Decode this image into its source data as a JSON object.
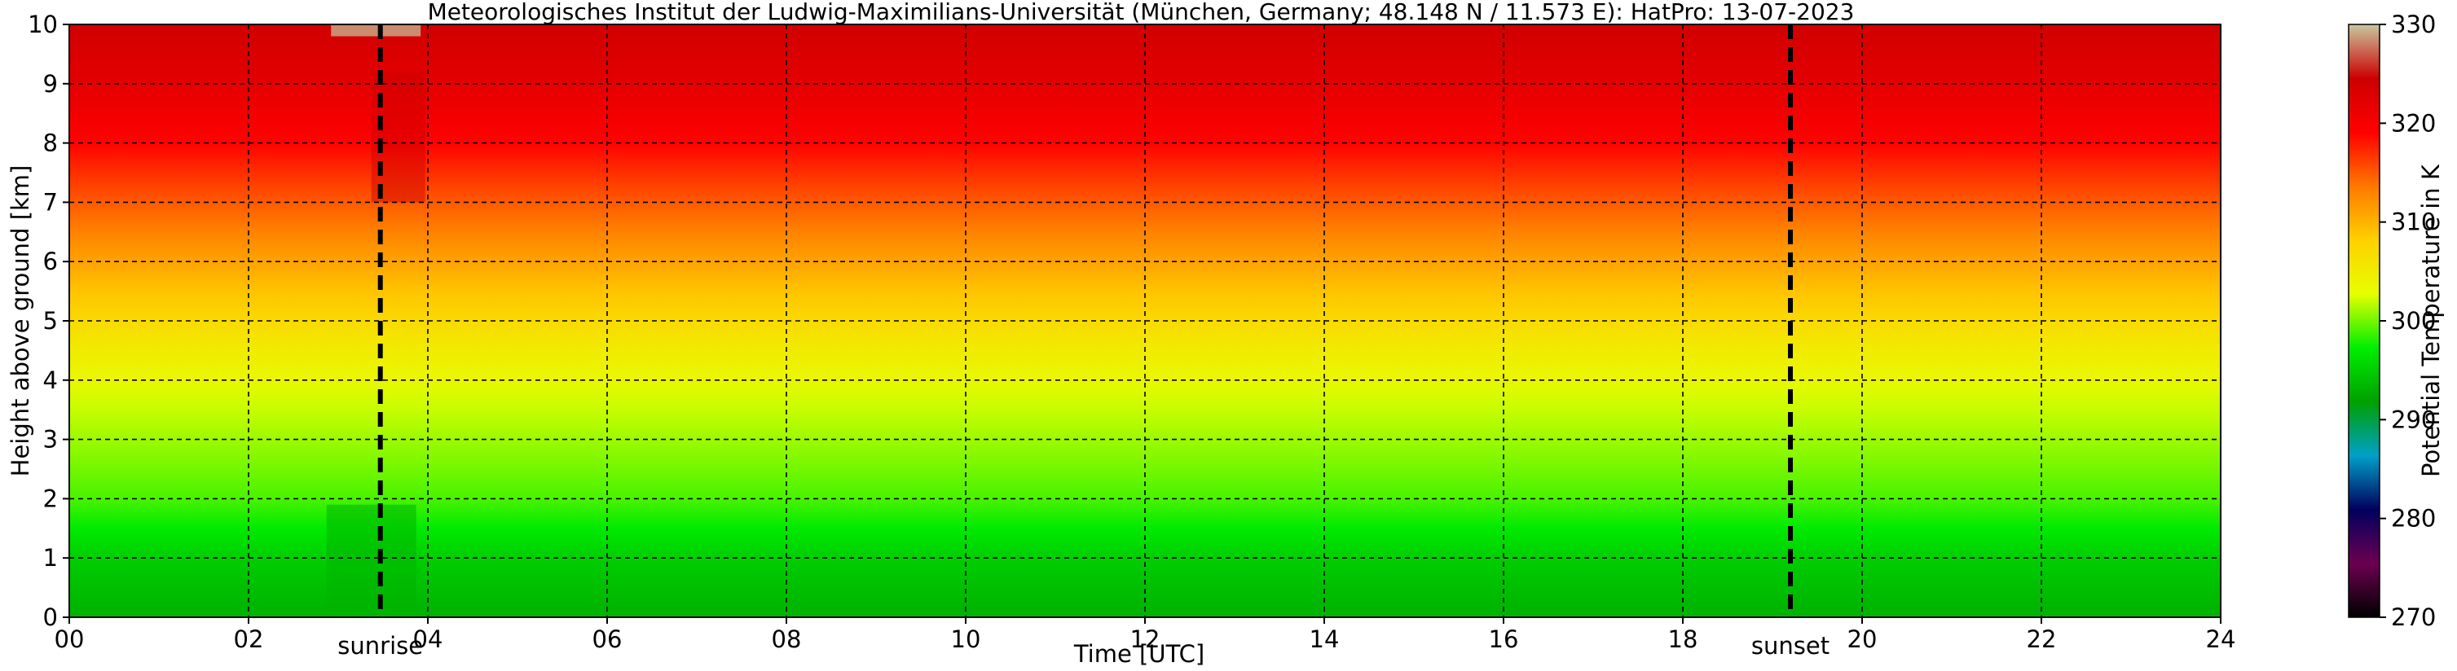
{
  "chart_data": {
    "type": "heatmap",
    "title": "Meteorologisches Institut der Ludwig-Maximilians-Universität (München, Germany; 48.148 N / 11.573 E):    HatPro: 13-07-2023",
    "xlabel": "Time [UTC]",
    "ylabel": "Height above ground [km]",
    "xlim": [
      0,
      24
    ],
    "ylim": [
      0,
      10
    ],
    "x_ticks": [
      "00",
      "02",
      "04",
      "06",
      "08",
      "10",
      "12",
      "14",
      "16",
      "18",
      "20",
      "22",
      "24"
    ],
    "y_ticks": [
      "0",
      "1",
      "2",
      "3",
      "4",
      "5",
      "6",
      "7",
      "8",
      "9",
      "10"
    ],
    "grid": true,
    "colorbar": {
      "label": "Potential Temperature in K",
      "range": [
        270,
        330
      ],
      "ticks": [
        "270",
        "280",
        "290",
        "300",
        "310",
        "320",
        "330"
      ],
      "colors": [
        "#000000",
        "#6b0050",
        "#00005e",
        "#00a0c8",
        "#00a000",
        "#00ee00",
        "#e6ff00",
        "#ffd000",
        "#ff7800",
        "#ff0000",
        "#cc0000",
        "#c8c8a0"
      ]
    },
    "events": [
      {
        "name": "sunrise",
        "time": 3.47
      },
      {
        "name": "sunset",
        "time": 19.2
      }
    ],
    "theta_profile": {
      "heights_km": [
        0,
        0.5,
        1,
        1.5,
        2,
        2.5,
        3,
        3.5,
        4,
        4.5,
        5,
        5.5,
        6,
        6.5,
        7,
        7.5,
        8,
        8.5,
        9,
        9.5,
        10
      ],
      "theta_K": [
        293,
        294,
        295,
        297,
        299,
        300,
        301,
        302,
        303.5,
        305,
        307,
        309,
        311,
        313,
        315,
        317,
        319,
        320.5,
        322,
        323,
        324
      ]
    }
  }
}
